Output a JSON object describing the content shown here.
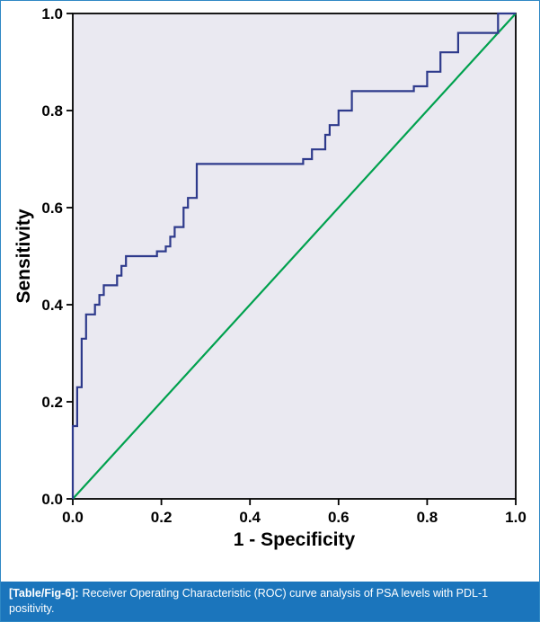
{
  "figure": {
    "caption": {
      "label": "[Table/Fig-6]:",
      "text": "Receiver Operating Characteristic (ROC) curve analysis of PSA levels with PDL-1 positivity.",
      "bg_color": "#1b75bc",
      "text_color": "#ffffff"
    }
  },
  "chart_data": {
    "type": "line",
    "subtype": "roc-step-curve",
    "title": "",
    "xlabel": "1 - Specificity",
    "ylabel": "Sensitivity",
    "xlim": [
      0,
      1
    ],
    "ylim": [
      0,
      1
    ],
    "xticks": [
      0,
      0.2,
      0.4,
      0.6,
      0.8,
      1
    ],
    "yticks": [
      0,
      0.2,
      0.4,
      0.6,
      0.8,
      1
    ],
    "xtick_labels": [
      "0.0",
      "0.2",
      "0.4",
      "0.6",
      "0.8",
      "1.0"
    ],
    "ytick_labels": [
      "0.0",
      "0.2",
      "0.4",
      "0.6",
      "0.8",
      "1.0"
    ],
    "plot_bg_color": "#eae9f1",
    "grid": false,
    "legend": "none",
    "series": [
      {
        "name": "reference-diagonal",
        "color": "#00a14e",
        "points": [
          [
            0,
            0
          ],
          [
            1,
            1
          ]
        ]
      },
      {
        "name": "roc-curve",
        "color": "#2e3a8c",
        "points": [
          [
            0,
            0
          ],
          [
            0,
            0.15
          ],
          [
            0.01,
            0.15
          ],
          [
            0.01,
            0.23
          ],
          [
            0.02,
            0.23
          ],
          [
            0.02,
            0.33
          ],
          [
            0.03,
            0.33
          ],
          [
            0.03,
            0.38
          ],
          [
            0.05,
            0.38
          ],
          [
            0.05,
            0.4
          ],
          [
            0.06,
            0.4
          ],
          [
            0.06,
            0.42
          ],
          [
            0.07,
            0.42
          ],
          [
            0.07,
            0.44
          ],
          [
            0.1,
            0.44
          ],
          [
            0.1,
            0.46
          ],
          [
            0.11,
            0.46
          ],
          [
            0.11,
            0.48
          ],
          [
            0.12,
            0.48
          ],
          [
            0.12,
            0.5
          ],
          [
            0.19,
            0.5
          ],
          [
            0.19,
            0.51
          ],
          [
            0.21,
            0.51
          ],
          [
            0.21,
            0.52
          ],
          [
            0.22,
            0.52
          ],
          [
            0.22,
            0.54
          ],
          [
            0.23,
            0.54
          ],
          [
            0.23,
            0.56
          ],
          [
            0.25,
            0.56
          ],
          [
            0.25,
            0.6
          ],
          [
            0.26,
            0.6
          ],
          [
            0.26,
            0.62
          ],
          [
            0.28,
            0.62
          ],
          [
            0.28,
            0.69
          ],
          [
            0.52,
            0.69
          ],
          [
            0.52,
            0.7
          ],
          [
            0.54,
            0.7
          ],
          [
            0.54,
            0.72
          ],
          [
            0.57,
            0.72
          ],
          [
            0.57,
            0.75
          ],
          [
            0.58,
            0.75
          ],
          [
            0.58,
            0.77
          ],
          [
            0.6,
            0.77
          ],
          [
            0.6,
            0.8
          ],
          [
            0.63,
            0.8
          ],
          [
            0.63,
            0.84
          ],
          [
            0.77,
            0.84
          ],
          [
            0.77,
            0.85
          ],
          [
            0.8,
            0.85
          ],
          [
            0.8,
            0.88
          ],
          [
            0.83,
            0.88
          ],
          [
            0.83,
            0.92
          ],
          [
            0.87,
            0.92
          ],
          [
            0.87,
            0.96
          ],
          [
            0.96,
            0.96
          ],
          [
            0.96,
            1.0
          ],
          [
            1,
            1
          ]
        ]
      }
    ]
  }
}
